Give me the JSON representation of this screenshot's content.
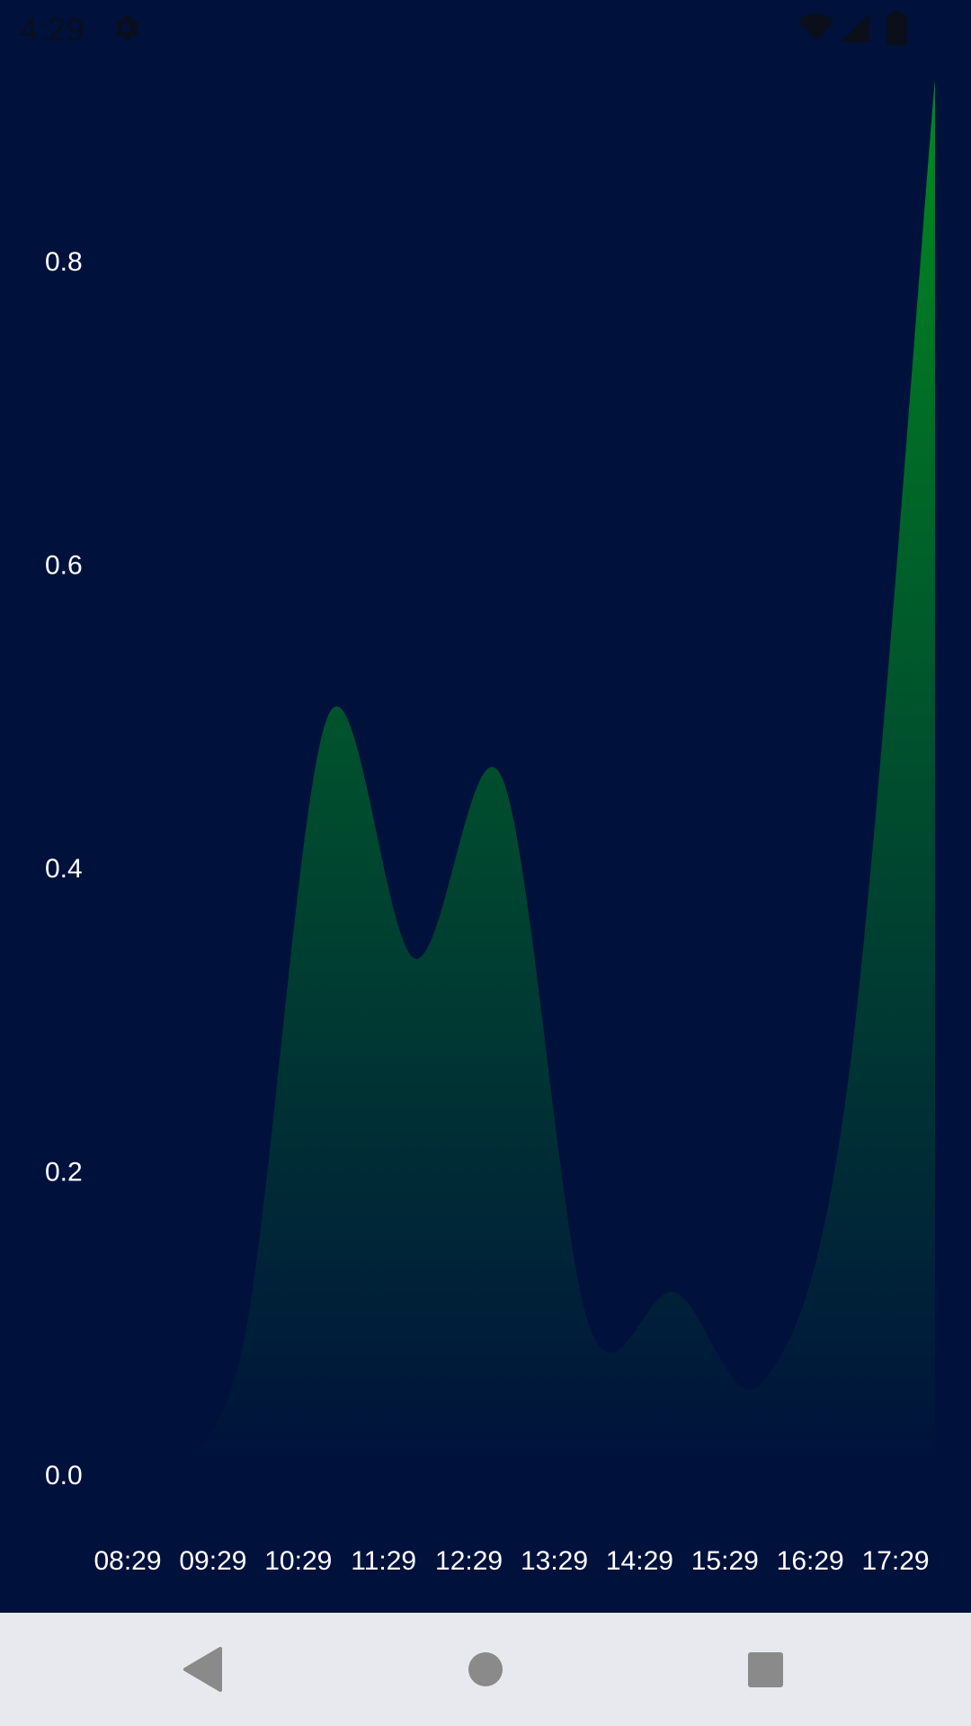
{
  "status_bar": {
    "time": "4:29",
    "icons": [
      "gear-icon",
      "wifi-icon",
      "signal-icon",
      "battery-icon"
    ]
  },
  "chart_data": {
    "type": "area",
    "title": "",
    "xlabel": "",
    "ylabel": "",
    "x_ticks": [
      "08:29",
      "09:29",
      "10:29",
      "11:29",
      "12:29",
      "13:29",
      "14:29",
      "15:29",
      "16:29",
      "17:29"
    ],
    "y_ticks": [
      "0.0",
      "0.2",
      "0.4",
      "0.6",
      "0.8"
    ],
    "ylim": [
      0,
      0.92
    ],
    "grid": false,
    "series": [
      {
        "x": [
          "08:29",
          "09:29",
          "10:29",
          "11:29",
          "12:29",
          "13:29",
          "14:29",
          "15:29",
          "16:29",
          "17:29"
        ],
        "y": [
          0.0,
          0.08,
          0.5,
          0.34,
          0.46,
          0.1,
          0.12,
          0.06,
          0.26,
          0.92
        ]
      }
    ],
    "colors": {
      "background": "#00113c",
      "fill_top": "#008a1f",
      "fill_bottom": "#00113c",
      "text": "#ffffff"
    }
  },
  "nav_bar": {
    "buttons": [
      "back-icon",
      "home-icon",
      "recents-icon"
    ]
  }
}
